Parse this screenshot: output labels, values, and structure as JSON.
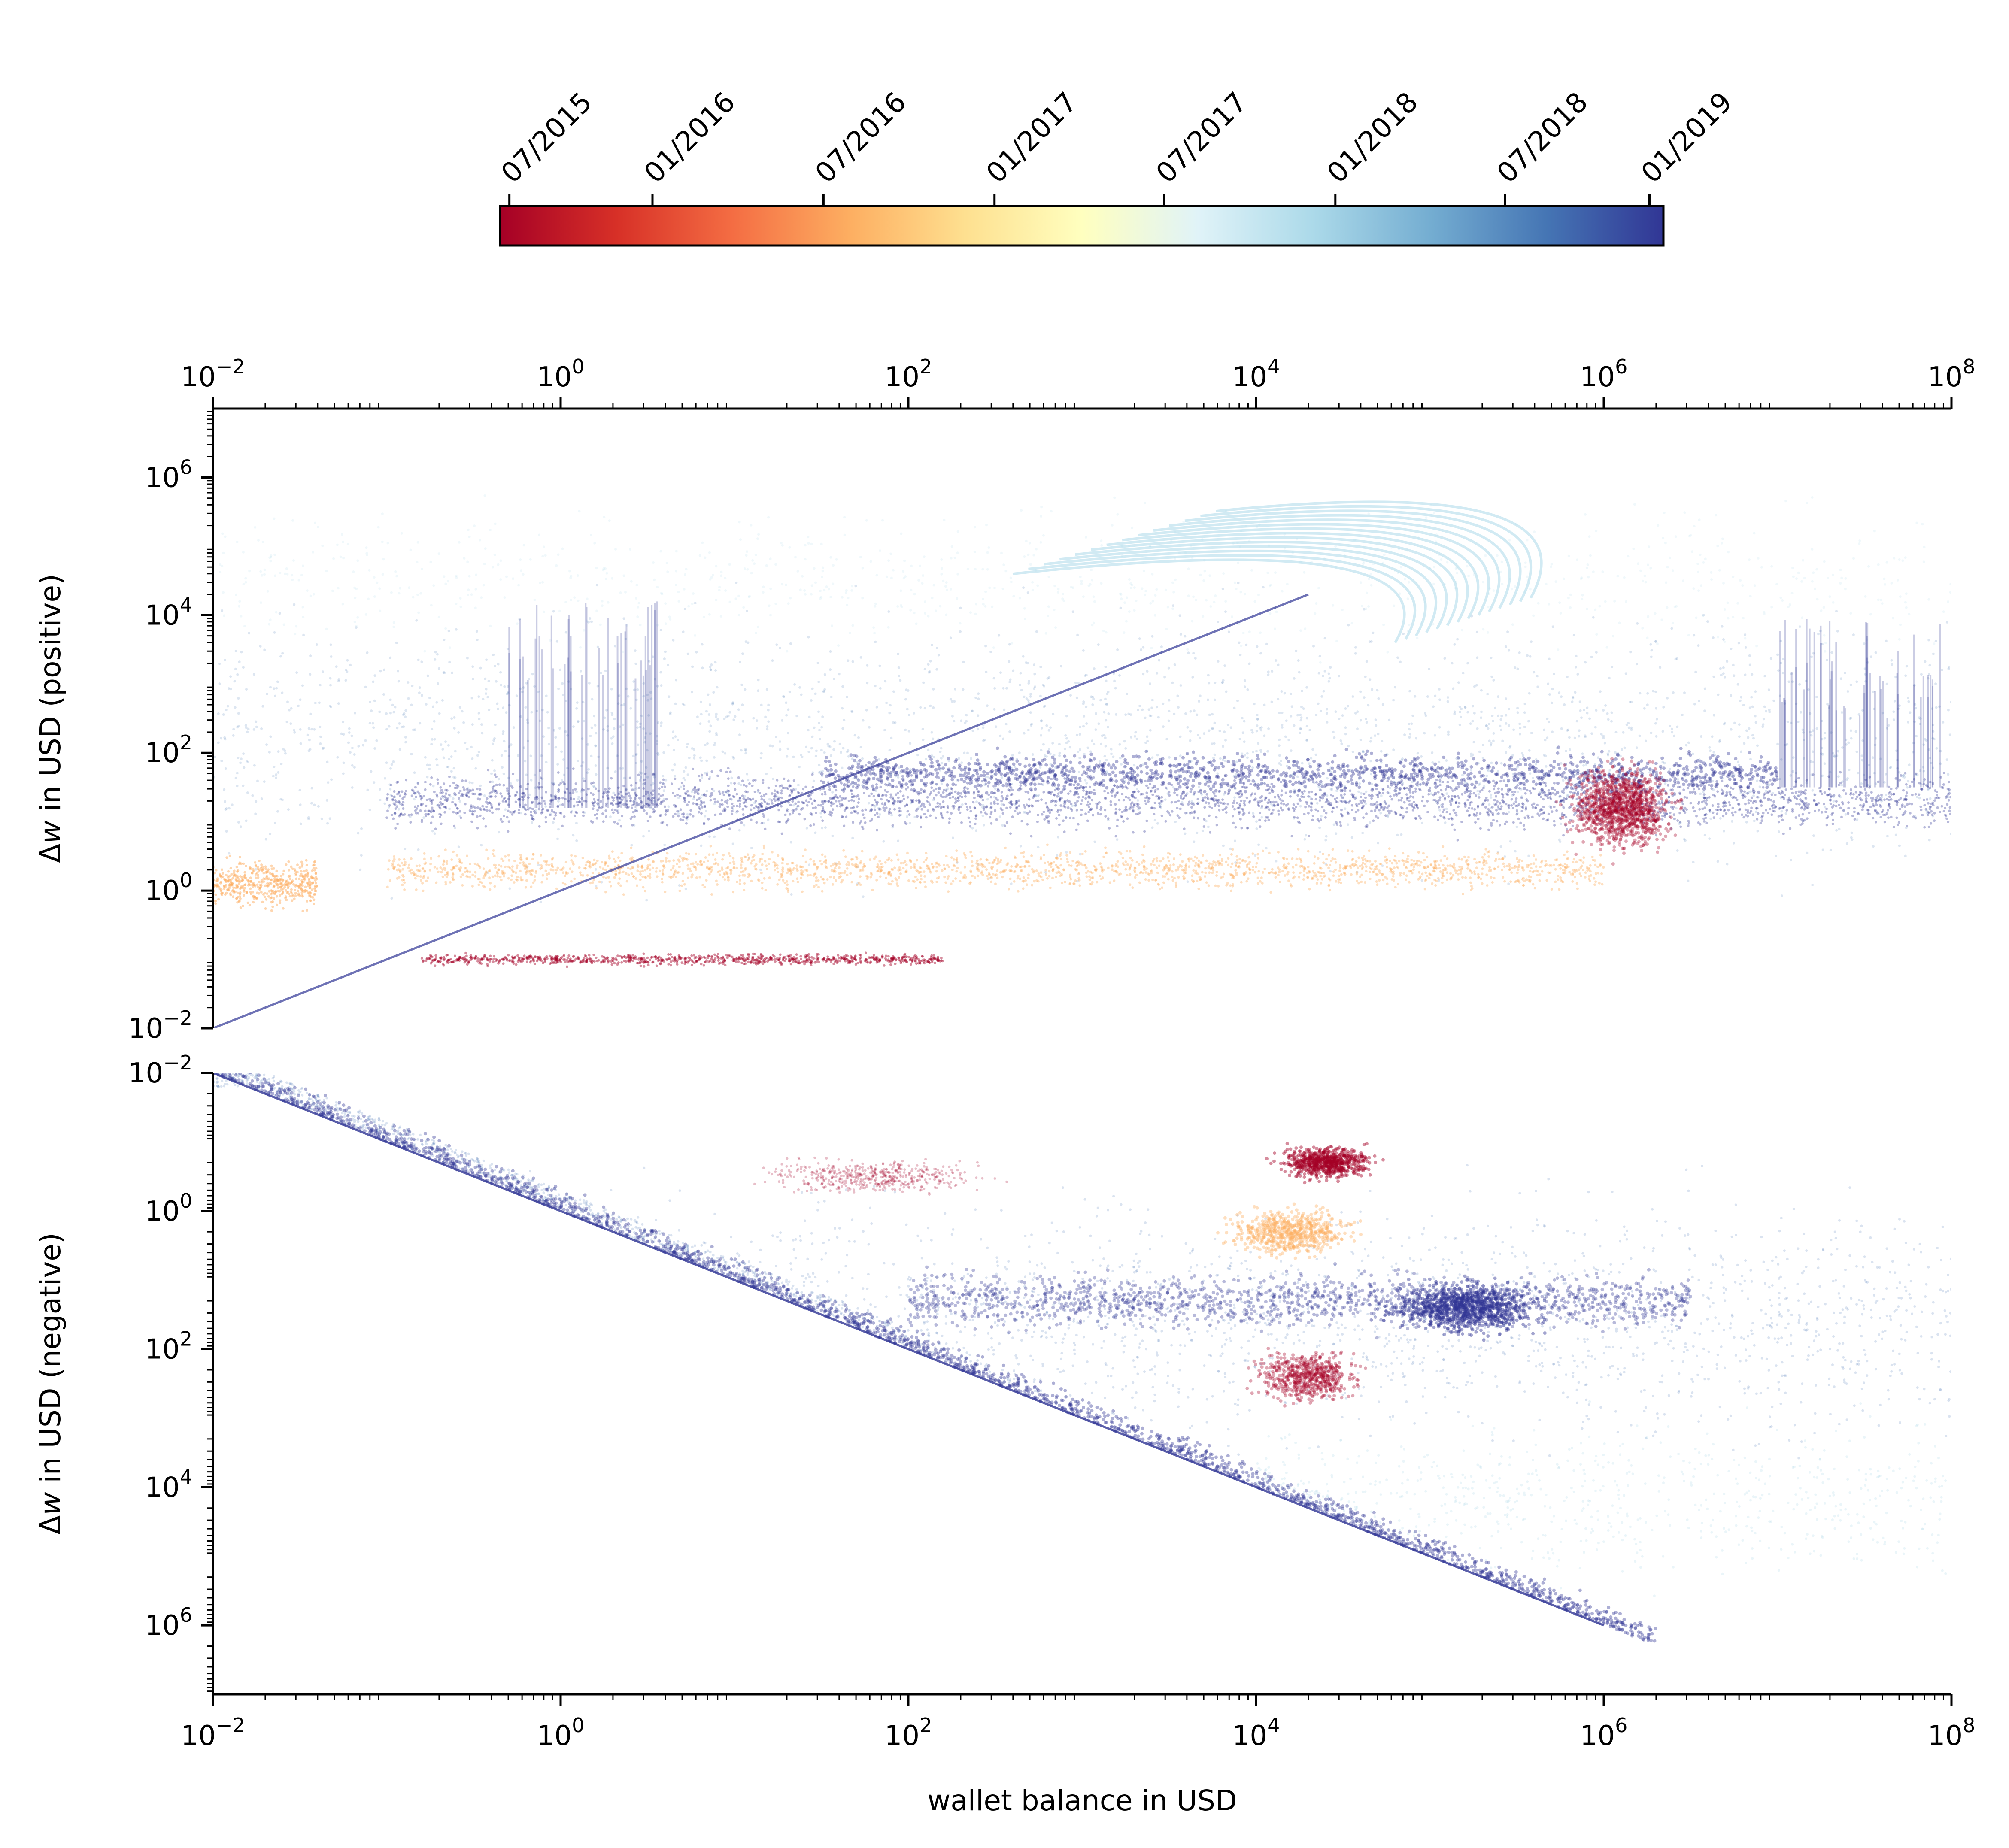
{
  "chart_data": [
    {
      "type": "scatter",
      "panel": "top",
      "xlabel": "",
      "ylabel_prefix": "Δ",
      "ylabel_var": "w",
      "ylabel_rest": " in USD (positive)",
      "xscale": "log",
      "yscale": "log",
      "xlim": [
        0.01,
        100000000
      ],
      "ylim": [
        0.01,
        10000000
      ],
      "x_ticks": [
        {
          "exp": "−2"
        },
        {
          "exp": "0"
        },
        {
          "exp": "2"
        },
        {
          "exp": "4"
        },
        {
          "exp": "6"
        },
        {
          "exp": "8"
        }
      ],
      "y_ticks": [
        {
          "exp": "−2"
        },
        {
          "exp": "0"
        },
        {
          "exp": "2"
        },
        {
          "exp": "4"
        },
        {
          "exp": "6"
        }
      ],
      "x_axis_position": "top",
      "tick_base": "10",
      "features": [
        {
          "name": "diagonal-line",
          "x0": 0.01,
          "y0": 0.01,
          "x1": 20000,
          "y1": 20000
        },
        {
          "name": "band-dense-blue",
          "y": 20
        },
        {
          "name": "band-yellow",
          "y": 2
        },
        {
          "name": "band-red",
          "y": 0.1
        },
        {
          "name": "arcs-lightblue",
          "x": 80000,
          "y": 50000
        },
        {
          "name": "red-cluster",
          "x": 2000000,
          "y": 10
        }
      ]
    },
    {
      "type": "scatter",
      "panel": "bottom",
      "xlabel": "wallet balance in USD",
      "ylabel_prefix": "Δ",
      "ylabel_var": "w",
      "ylabel_rest": " in USD (negative)",
      "xscale": "log",
      "yscale": "log",
      "y_inverted": true,
      "xlim": [
        0.01,
        100000000
      ],
      "ylim": [
        0.01,
        10000000
      ],
      "x_ticks": [
        {
          "exp": "−2"
        },
        {
          "exp": "0"
        },
        {
          "exp": "2"
        },
        {
          "exp": "4"
        },
        {
          "exp": "6"
        },
        {
          "exp": "8"
        }
      ],
      "y_ticks": [
        {
          "exp": "−2"
        },
        {
          "exp": "0"
        },
        {
          "exp": "2"
        },
        {
          "exp": "4"
        },
        {
          "exp": "6"
        }
      ],
      "x_axis_position": "bottom",
      "tick_base": "10",
      "features": [
        {
          "name": "boundary-diagonal",
          "x0": 0.01,
          "y0": 0.01,
          "x1": 1000000,
          "y1": 1000000
        },
        {
          "name": "red-cluster-upper",
          "x": 30000,
          "y": 0.2
        },
        {
          "name": "blue-cluster",
          "x": 100000,
          "y": 20
        },
        {
          "name": "red-cluster-lower",
          "x": 20000,
          "y": 200
        }
      ]
    }
  ],
  "colorbar": {
    "orientation": "horizontal",
    "location": "top",
    "colormap": "RdYlBu",
    "tick_labels": [
      "07/2015",
      "01/2016",
      "07/2016",
      "01/2017",
      "07/2017",
      "01/2018",
      "07/2018",
      "01/2019"
    ],
    "tick_fractions": [
      0.008,
      0.131,
      0.278,
      0.425,
      0.571,
      0.718,
      0.864,
      0.988
    ]
  },
  "colors": {
    "red": "#a50026",
    "orange": "#f46d43",
    "yellow": "#fdae61",
    "cream": "#ffffbf",
    "lightblue": "#abd9e9",
    "blue": "#4575b4",
    "navy": "#313695"
  }
}
